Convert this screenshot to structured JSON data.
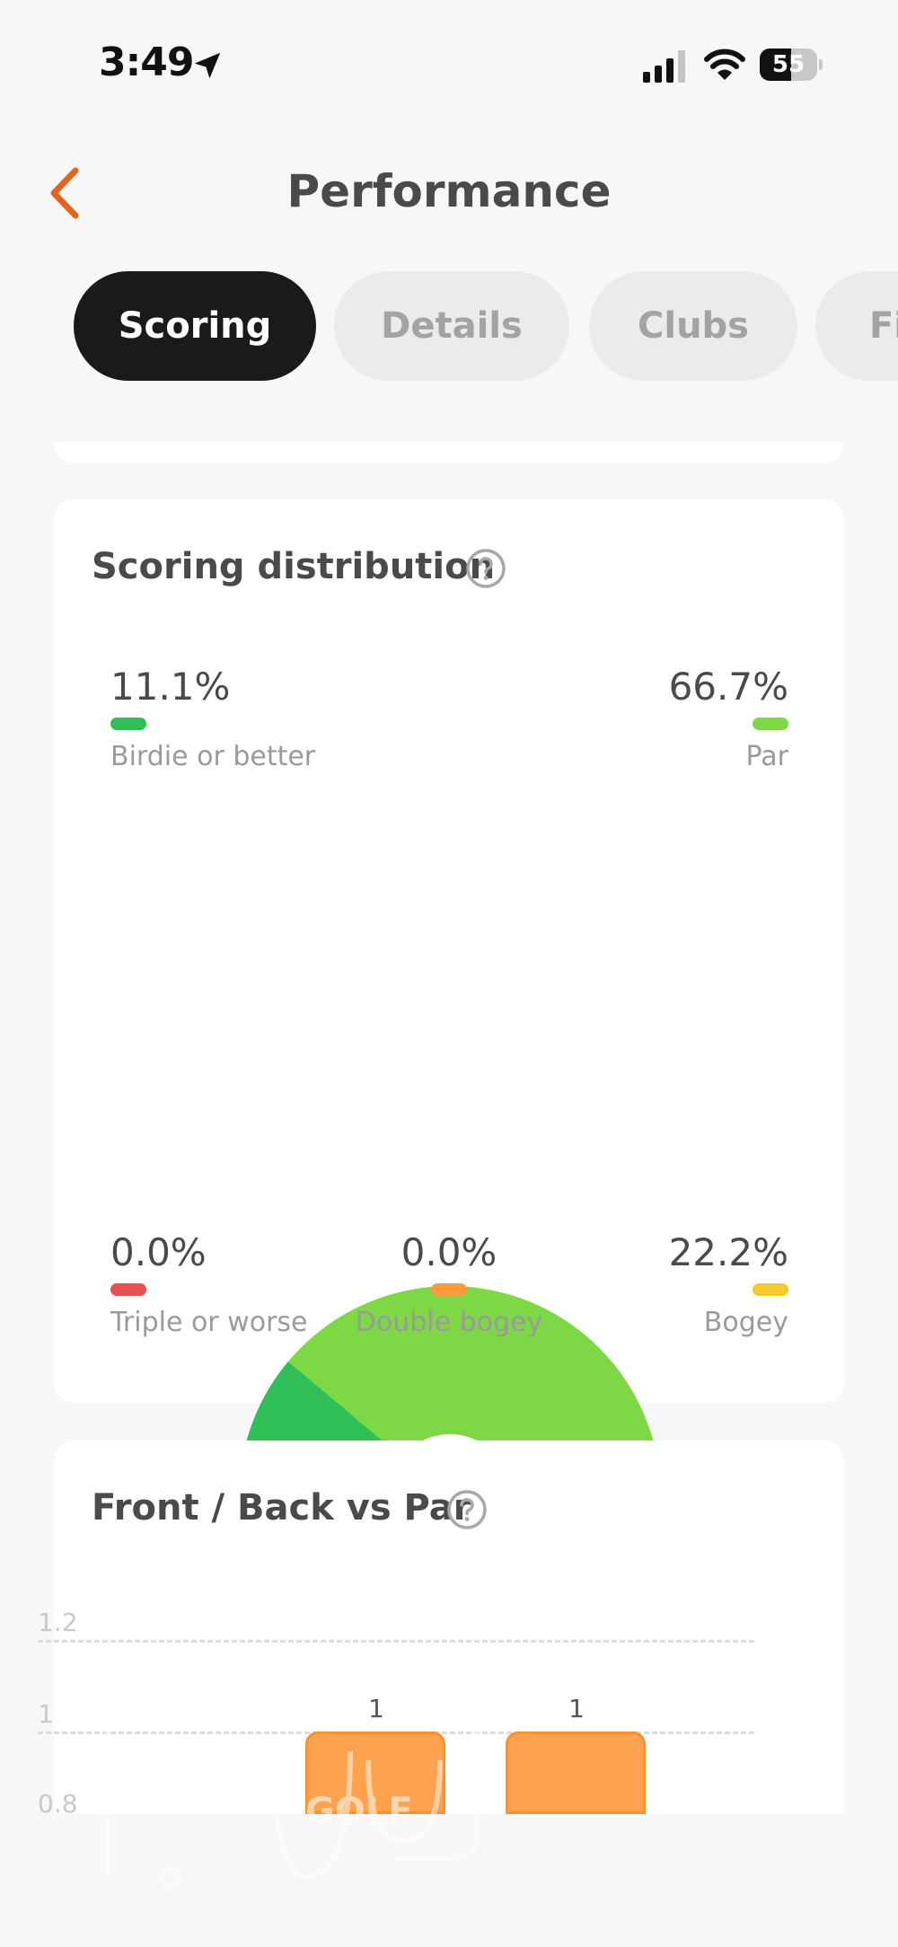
{
  "status_bar": {
    "time": "3:49",
    "battery_level": 55,
    "battery_text": "55"
  },
  "header": {
    "title": "Performance"
  },
  "tabs": [
    {
      "label": "Scoring",
      "active": true
    },
    {
      "label": "Details",
      "active": false
    },
    {
      "label": "Clubs",
      "active": false
    },
    {
      "label": "Fi",
      "active": false
    }
  ],
  "scoring_distribution": {
    "title": "Scoring distribution",
    "legend": {
      "birdie": {
        "value": "11.1%",
        "label": "Birdie or better",
        "color": "#2fbf56"
      },
      "par": {
        "value": "66.7%",
        "label": "Par",
        "color": "#7ed846"
      },
      "triple": {
        "value": "0.0%",
        "label": "Triple or worse",
        "color": "#e8514f"
      },
      "double": {
        "value": "0.0%",
        "label": "Double bogey",
        "color": "#ff9a3c"
      },
      "bogey": {
        "value": "22.2%",
        "label": "Bogey",
        "color": "#f4cb2a"
      }
    }
  },
  "front_back": {
    "title": "Front / Back vs Par",
    "y_ticks": [
      "1.2",
      "1",
      "0.8"
    ],
    "bars": [
      {
        "value_label": "1"
      },
      {
        "value_label": "1"
      }
    ]
  },
  "watermark": {
    "brand": "GOLF"
  },
  "colors": {
    "accent": "#e0651f",
    "bar": "#ffa24f"
  },
  "chart_data": [
    {
      "type": "pie",
      "categories": [
        "Birdie or better",
        "Par",
        "Bogey",
        "Double bogey",
        "Triple or worse"
      ],
      "values": [
        11.1,
        66.7,
        22.2,
        0.0,
        0.0
      ],
      "title": "Scoring distribution"
    },
    {
      "type": "bar",
      "values": [
        1,
        1
      ],
      "title": "Front / Back vs Par",
      "ylim": [
        0.8,
        1.2
      ],
      "y_ticks": [
        1.2,
        1,
        0.8
      ]
    }
  ]
}
